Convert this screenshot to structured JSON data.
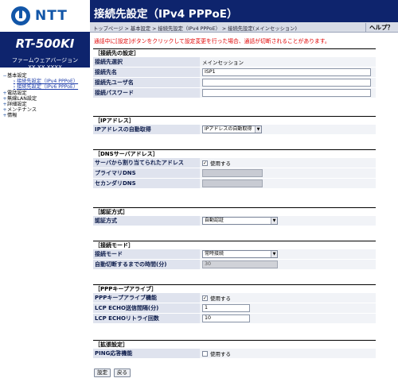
{
  "brand": {
    "logo_text": "NTT",
    "brand_color": "#1256a8"
  },
  "device": {
    "model": "RT-500KI",
    "fw_label": "ファームウェアバージョン",
    "fw_version": "XX.XX.XXXX"
  },
  "nav": {
    "items": [
      {
        "label": "基本設定",
        "icon": "minus-icon",
        "sub": false
      },
      {
        "label": "接続先設定（IPv4 PPPoE）",
        "icon": "arrow-icon",
        "sub": true
      },
      {
        "label": "接続先設定（IPv6 PPPoE）",
        "icon": "arrow-icon",
        "sub": true
      },
      {
        "label": "電話設定",
        "icon": "plus-icon",
        "sub": false
      },
      {
        "label": "無線LAN設定",
        "icon": "plus-icon",
        "sub": false
      },
      {
        "label": "詳細設定",
        "icon": "plus-icon",
        "sub": false
      },
      {
        "label": "メンテナンス",
        "icon": "plus-icon",
        "sub": false
      },
      {
        "label": "情報",
        "icon": "plus-icon",
        "sub": false
      }
    ]
  },
  "header": {
    "title": "接続先設定（IPv4 PPPoE）",
    "breadcrumb": "トップページ > 基本設定 > 接続先設定（IPv4 PPPoE） > 接続先設定(メインセッション)",
    "help": "ヘルプ？",
    "header_color": "#0e246d"
  },
  "warning": "通話中に[設定]ボタンをクリックして設定変更を行った場合、通話が切断されることがあります。",
  "sections": {
    "conn": {
      "title": "［接続先の設定］",
      "select_label": "接続先選択",
      "select_value": "メインセッション",
      "name_label": "接続先名",
      "name_value": "ISP1",
      "user_label": "接続先ユーザ名",
      "user_value": "",
      "pass_label": "接続パスワード",
      "pass_value": ""
    },
    "ip": {
      "title": "［IPアドレス］",
      "auto_label": "IPアドレスの自動取得",
      "auto_value": "IPアドレスの自動取得"
    },
    "dns": {
      "title": "［DNSサーバアドレス］",
      "server_label": "サーバから割り当てられたアドレス",
      "server_check": "使用する",
      "primary_label": "プライマリDNS",
      "secondary_label": "セカンダリDNS"
    },
    "auth": {
      "title": "［認証方式］",
      "method_label": "認証方式",
      "method_value": "自動認証"
    },
    "mode": {
      "title": "［接続モード］",
      "mode_label": "接続モード",
      "mode_value": "常時接続",
      "timeout_label": "自動切断するまでの時間(分)",
      "timeout_value": "30"
    },
    "keepalive": {
      "title": "［PPPキープアライブ］",
      "func_label": "PPPキープアライブ機能",
      "func_check": "使用する",
      "interval_label": "LCP ECHO送信間隔(分)",
      "interval_value": "1",
      "retry_label": "LCP ECHOリトライ回数",
      "retry_value": "10"
    },
    "ext": {
      "title": "［拡張設定］",
      "ping_label": "PING応答機能",
      "ping_check": "使用する"
    }
  },
  "buttons": {
    "apply": "設定",
    "back": "戻る"
  }
}
